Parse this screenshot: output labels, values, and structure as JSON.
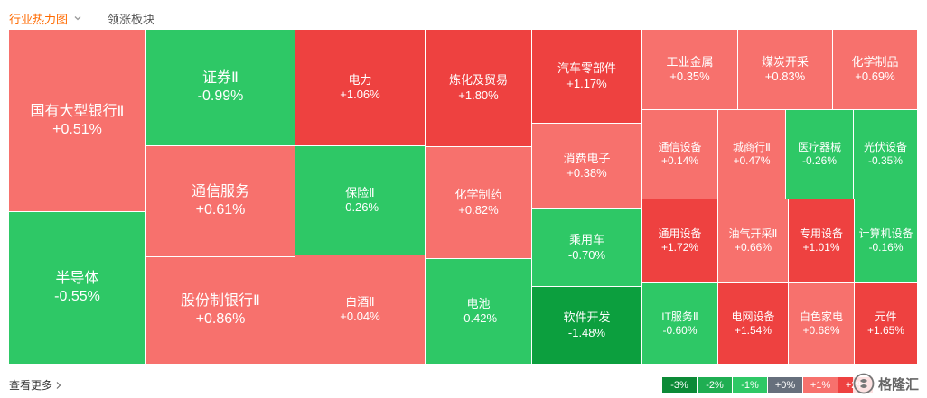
{
  "tabs": {
    "active": "行业热力图",
    "second": "领涨板块"
  },
  "colors": {
    "green_dark": "#0c9f3e",
    "green": "#2ec866",
    "red_light": "#f7716d",
    "red": "#ee4140",
    "red_mid": "#f55f5c"
  },
  "cells": [
    {
      "name": "国有大型银行Ⅱ",
      "change": "+0.51%"
    },
    {
      "name": "半导体",
      "change": "-0.55%"
    },
    {
      "name": "证券Ⅱ",
      "change": "-0.99%"
    },
    {
      "name": "通信服务",
      "change": "+0.61%"
    },
    {
      "name": "股份制银行Ⅱ",
      "change": "+0.86%"
    },
    {
      "name": "电力",
      "change": "+1.06%"
    },
    {
      "name": "保险Ⅱ",
      "change": "-0.26%"
    },
    {
      "name": "白酒Ⅱ",
      "change": "+0.04%"
    },
    {
      "name": "炼化及贸易",
      "change": "+1.80%"
    },
    {
      "name": "化学制药",
      "change": "+0.82%"
    },
    {
      "name": "电池",
      "change": "-0.42%"
    },
    {
      "name": "汽车零部件",
      "change": "+1.17%"
    },
    {
      "name": "消费电子",
      "change": "+0.38%"
    },
    {
      "name": "乘用车",
      "change": "-0.70%"
    },
    {
      "name": "软件开发",
      "change": "-1.48%"
    },
    {
      "name": "工业金属",
      "change": "+0.35%"
    },
    {
      "name": "煤炭开采",
      "change": "+0.83%"
    },
    {
      "name": "化学制品",
      "change": "+0.69%"
    },
    {
      "name": "通信设备",
      "change": "+0.14%"
    },
    {
      "name": "城商行Ⅱ",
      "change": "+0.47%"
    },
    {
      "name": "医疗器械",
      "change": "-0.26%"
    },
    {
      "name": "光伏设备",
      "change": "-0.35%"
    },
    {
      "name": "通用设备",
      "change": "+1.72%"
    },
    {
      "name": "油气开采Ⅱ",
      "change": "+0.66%"
    },
    {
      "name": "专用设备",
      "change": "+1.01%"
    },
    {
      "name": "计算机设备",
      "change": "-0.16%"
    },
    {
      "name": "IT服务Ⅱ",
      "change": "-0.60%"
    },
    {
      "name": "电网设备",
      "change": "+1.54%"
    },
    {
      "name": "白色家电",
      "change": "+0.68%"
    },
    {
      "name": "元件",
      "change": "+1.65%"
    }
  ],
  "footer": {
    "more": "查看更多"
  },
  "legend": [
    "-3%",
    "-2%",
    "-1%",
    "+0%",
    "+1%",
    "+2%"
  ],
  "legend_colors": [
    "#0c8a37",
    "#1fae52",
    "#2ec866",
    "#666f7c",
    "#f7716d",
    "#ee4140"
  ],
  "watermark": "格隆汇"
}
